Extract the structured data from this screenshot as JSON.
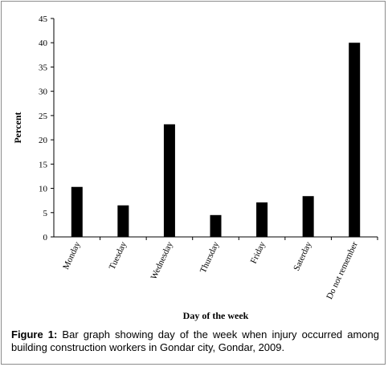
{
  "chart_data": {
    "type": "bar",
    "categories": [
      "Monday",
      "Tuesday",
      "Wednesday",
      "Thursday",
      "Friday",
      "Saterday",
      "Do not remember"
    ],
    "values": [
      10.3,
      6.5,
      23.2,
      4.5,
      7.1,
      8.4,
      40
    ],
    "xlabel": "Day of the week",
    "ylabel": "Percent",
    "ylim": [
      0,
      45
    ],
    "yticks": [
      0,
      5,
      10,
      15,
      20,
      25,
      30,
      35,
      40,
      45
    ],
    "bar_color": "#000000",
    "grid": false,
    "legend": "none"
  },
  "caption": {
    "label": "Figure 1:",
    "text": " Bar graph showing day of the week when injury occurred among building construction workers in Gondar city, Gondar, 2009."
  }
}
